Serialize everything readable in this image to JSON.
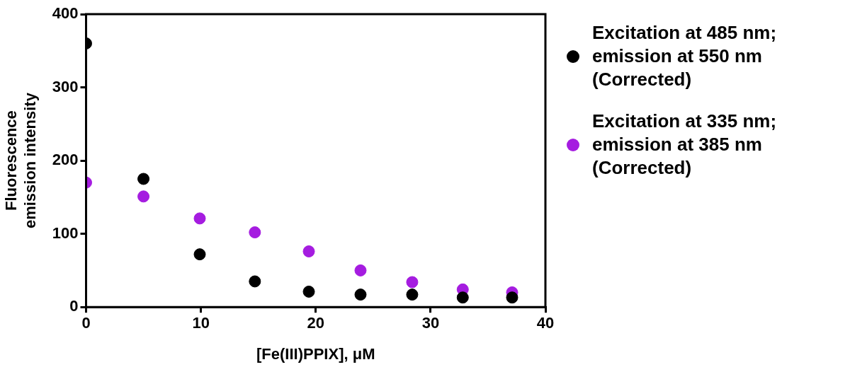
{
  "chart_data": {
    "type": "scatter",
    "xlabel": "[Fe(III)PPIX], μM",
    "ylabel": "Fluorescence emission intensity",
    "xlim": [
      0,
      40
    ],
    "xticks": [
      0,
      10,
      20,
      30,
      40
    ],
    "ylim": [
      0,
      400
    ],
    "yticks": [
      0,
      100,
      200,
      300,
      400
    ],
    "grid": false,
    "legend": "right",
    "marker": "circle",
    "series": [
      {
        "name": "Excitation at 485 nm; emission at 550 nm (Corrected)",
        "color": "#000000",
        "x": [
          0,
          5,
          9.9,
          14.7,
          19.4,
          23.9,
          28.4,
          32.8,
          37.1
        ],
        "values": [
          360,
          175,
          72,
          35,
          21,
          17,
          17,
          13,
          13
        ]
      },
      {
        "name": "Excitation at 335 nm; emission at 385 nm (Corrected)",
        "color": "#a51ce0",
        "x": [
          0,
          5,
          9.9,
          14.7,
          19.4,
          23.9,
          28.4,
          32.8,
          37.1
        ],
        "values": [
          170,
          151,
          121,
          102,
          76,
          50,
          34,
          24,
          20
        ]
      }
    ]
  }
}
